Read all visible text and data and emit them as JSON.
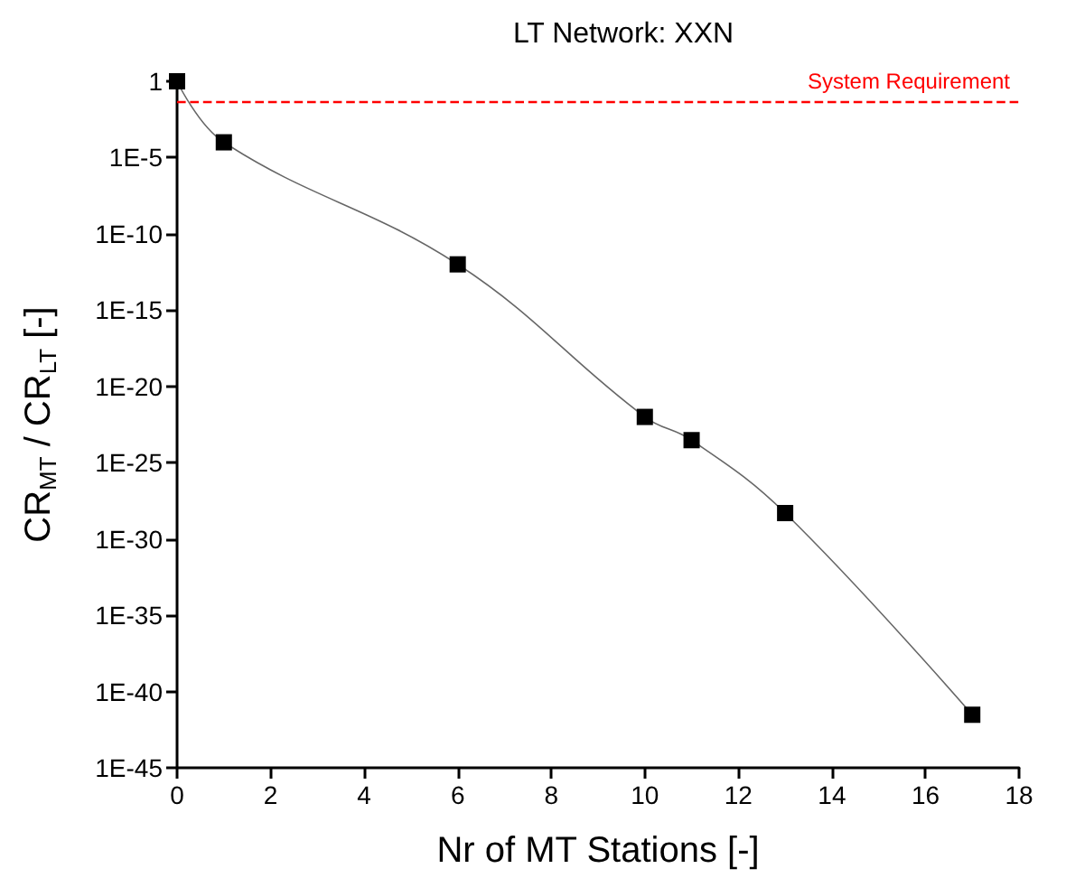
{
  "chart_data": {
    "type": "line",
    "title": "LT Network: XXN",
    "xlabel": "Nr of MT Stations [-]",
    "ylabel": "CR$_{MT}$ / CR$_{LT}$ [-]",
    "x": [
      0,
      1,
      6,
      10,
      11,
      13,
      17
    ],
    "series": [
      {
        "color": "#000000",
        "values": [
          1,
          0.0001,
          1e-12,
          1e-22,
          3e-24,
          5e-29,
          3e-42
        ]
      }
    ],
    "xlim": [
      0,
      18
    ],
    "xticks": [
      0,
      2,
      4,
      6,
      8,
      10,
      12,
      14,
      16,
      18
    ],
    "ylim": [
      1e-45,
      1
    ],
    "yticks": [
      {
        "value": 1e-45,
        "label": "1E-45"
      },
      {
        "value": 1e-40,
        "label": "1E-40"
      },
      {
        "value": 1e-35,
        "label": "1E-35"
      },
      {
        "value": 1e-30,
        "label": "1E-30"
      },
      {
        "value": 1e-25,
        "label": "1E-25"
      },
      {
        "value": 1e-20,
        "label": "1E-20"
      },
      {
        "value": 1e-15,
        "label": "1E-15"
      },
      {
        "value": 1e-10,
        "label": "1E-10"
      },
      {
        "value": 1e-05,
        "label": "1E-5"
      },
      {
        "value": 1,
        "label": "1"
      }
    ],
    "log": "y",
    "grid": false,
    "marker": "square",
    "line_style": "solid",
    "ref_lines": [
      {
        "axis": "y",
        "value": 0.05,
        "label": "System Requirement",
        "color": "#ff0000",
        "line_style": "dashed"
      }
    ]
  }
}
